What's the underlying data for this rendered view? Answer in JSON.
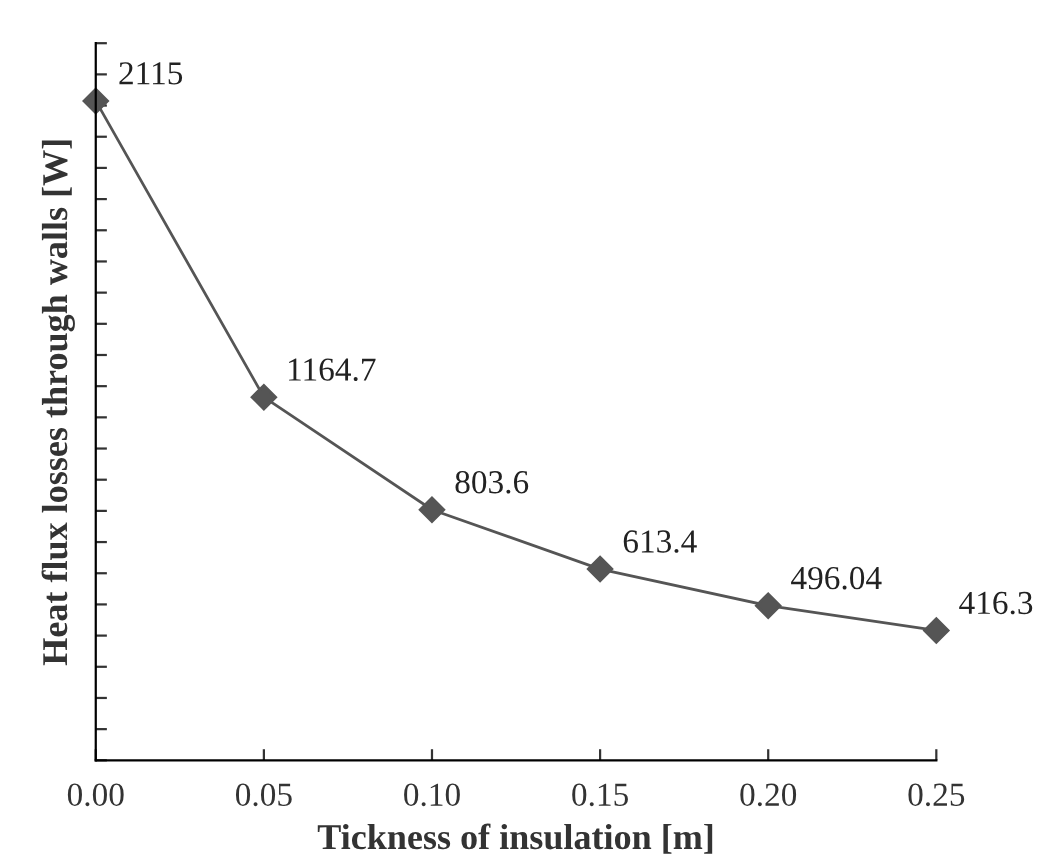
{
  "chart_data": {
    "type": "line",
    "xlabel": "Tickness of insulation [m]",
    "ylabel": "Heat flux losses through walls [W]",
    "x": [
      0.0,
      0.05,
      0.1,
      0.15,
      0.2,
      0.25
    ],
    "series": [
      {
        "color": "#555555",
        "values": [
          2115,
          1164.7,
          803.6,
          613.4,
          496.04,
          416.3
        ]
      }
    ],
    "data_labels": true,
    "marker": "diamond",
    "line_style": "solid",
    "grid": false,
    "legend": false,
    "tick_labels": "x",
    "xlim": [
      0.0,
      0.25
    ],
    "xticks": [
      {
        "value": 0.0,
        "label": "0.00"
      },
      {
        "value": 0.05,
        "label": "0.05"
      },
      {
        "value": 0.1,
        "label": "0.10"
      },
      {
        "value": 0.15,
        "label": "0.15"
      },
      {
        "value": 0.2,
        "label": "0.20"
      },
      {
        "value": 0.25,
        "label": "0.25"
      }
    ],
    "ylim": [
      0,
      2300
    ],
    "yticks": [
      {
        "value": 0,
        "label": null
      },
      {
        "value": 100,
        "label": null
      },
      {
        "value": 200,
        "label": null
      },
      {
        "value": 300,
        "label": null
      },
      {
        "value": 400,
        "label": null
      },
      {
        "value": 500,
        "label": null
      },
      {
        "value": 600,
        "label": null
      },
      {
        "value": 700,
        "label": null
      },
      {
        "value": 800,
        "label": null
      },
      {
        "value": 900,
        "label": null
      },
      {
        "value": 1000,
        "label": null
      },
      {
        "value": 1100,
        "label": null
      },
      {
        "value": 1200,
        "label": null
      },
      {
        "value": 1300,
        "label": null
      },
      {
        "value": 1400,
        "label": null
      },
      {
        "value": 1500,
        "label": null
      },
      {
        "value": 1600,
        "label": null
      },
      {
        "value": 1700,
        "label": null
      },
      {
        "value": 1800,
        "label": null
      },
      {
        "value": 1900,
        "label": null
      },
      {
        "value": 2000,
        "label": null
      },
      {
        "value": 2100,
        "label": null
      },
      {
        "value": 2200,
        "label": null
      },
      {
        "value": 2300,
        "label": null
      }
    ]
  }
}
